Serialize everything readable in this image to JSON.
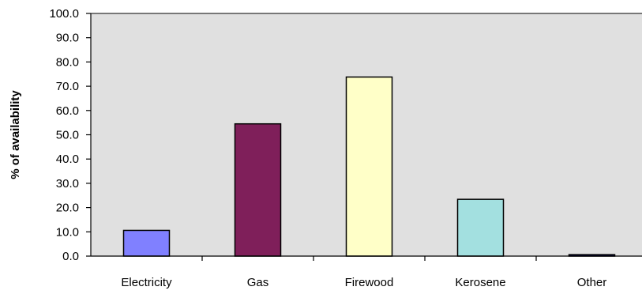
{
  "chart_data": {
    "type": "bar",
    "title": "",
    "xlabel": "",
    "ylabel": "% of availability",
    "categories": [
      "Electricity",
      "Gas",
      "Firewood",
      "Kerosene",
      "Other"
    ],
    "values": [
      10.6,
      54.5,
      73.8,
      23.4,
      0.6
    ],
    "ylim": [
      0,
      100
    ],
    "y_ticks": [
      "0.0",
      "10.0",
      "20.0",
      "30.0",
      "40.0",
      "50.0",
      "60.0",
      "70.0",
      "80.0",
      "90.0",
      "100.0"
    ],
    "grid": false,
    "legend": "none",
    "colors": {
      "plot_background": "#e0e0e0",
      "bars": [
        "#8080ff",
        "#7f1f5a",
        "#ffffc8",
        "#a3e0e0",
        "#000080"
      ],
      "bar_outline": "#000000",
      "axis": "#000000"
    }
  }
}
